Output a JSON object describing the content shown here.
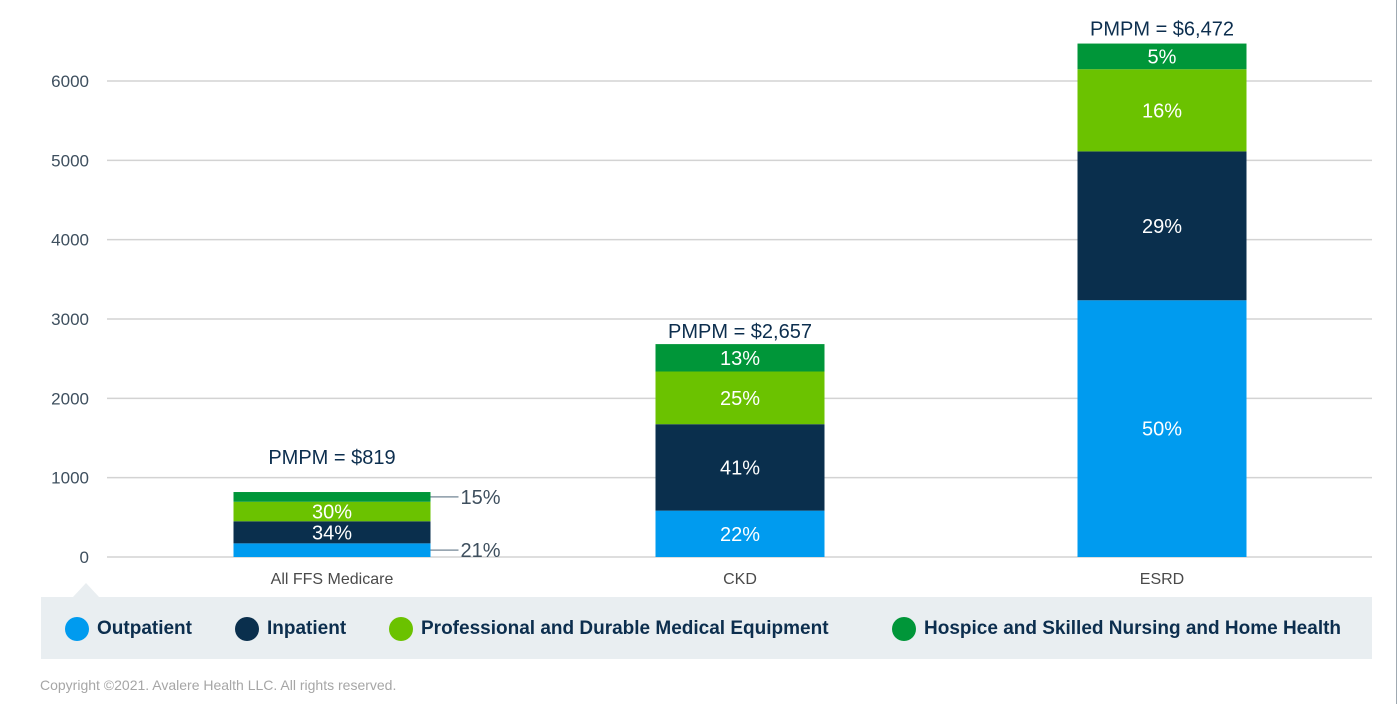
{
  "chart_data": {
    "type": "bar",
    "stacked": true,
    "title": "",
    "xlabel": "",
    "ylabel": "",
    "ylim": [
      0,
      6000
    ],
    "yticks": [
      0,
      1000,
      2000,
      3000,
      4000,
      5000,
      6000
    ],
    "grid": true,
    "legend_position": "bottom",
    "categories": [
      "All FFS Medicare",
      "CKD",
      "ESRD"
    ],
    "totals": [
      819,
      2657,
      6472
    ],
    "total_labels": [
      "PMPM = $819",
      "PMPM = $2,657",
      "PMPM = $6,472"
    ],
    "series": [
      {
        "name": "Outpatient",
        "color": "#009bef",
        "percents": [
          21,
          22,
          50
        ],
        "labels": [
          "21%",
          "22%",
          "50%"
        ]
      },
      {
        "name": "Inpatient",
        "color": "#0a2f4d",
        "percents": [
          34,
          41,
          29
        ],
        "labels": [
          "34%",
          "41%",
          "29%"
        ]
      },
      {
        "name": "Professional and Durable Medical Equipment",
        "color": "#6bc200",
        "percents": [
          30,
          25,
          16
        ],
        "labels": [
          "30%",
          "25%",
          "16%"
        ]
      },
      {
        "name": "Hospice and Skilled Nursing and Home Health",
        "color": "#009639",
        "percents": [
          15,
          13,
          5
        ],
        "labels": [
          "15%",
          "13%",
          "5%"
        ]
      }
    ],
    "outside_labels": [
      {
        "category": "All FFS Medicare",
        "series": "Hospice and Skilled Nursing and Home Health",
        "label": "15%"
      },
      {
        "category": "All FFS Medicare",
        "series": "Outpatient",
        "label": "21%"
      }
    ]
  },
  "legend": {
    "items": [
      {
        "label": "Outpatient",
        "color": "#009bef"
      },
      {
        "label": "Inpatient",
        "color": "#0a2f4d"
      },
      {
        "label": "Professional and Durable Medical Equipment",
        "color": "#6bc200"
      },
      {
        "label": "Hospice and Skilled Nursing and Home Health",
        "color": "#009639"
      }
    ]
  },
  "footer": {
    "copyright": "Copyright ©2021. Avalere Health LLC. All rights reserved."
  }
}
